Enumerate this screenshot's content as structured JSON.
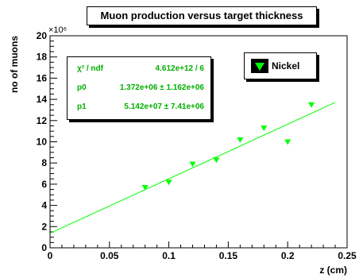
{
  "chart_data": {
    "type": "scatter",
    "title": "Muon production versus target thickness",
    "xlabel": "z (cm)",
    "ylabel": "no of muons",
    "y_multiplier": "×10⁶",
    "xlim": [
      0,
      0.25
    ],
    "ylim": [
      0,
      20
    ],
    "x_ticks": [
      "0",
      "0.05",
      "0.1",
      "0.15",
      "0.2",
      "0.25"
    ],
    "y_ticks": [
      "0",
      "2",
      "4",
      "6",
      "8",
      "10",
      "12",
      "14",
      "16",
      "18",
      "20"
    ],
    "series": [
      {
        "name": "Nickel",
        "marker": "triangle-down",
        "color": "#00ff00",
        "x": [
          0.08,
          0.1,
          0.12,
          0.14,
          0.16,
          0.18,
          0.2,
          0.22
        ],
        "y": [
          5.7,
          6.2,
          7.9,
          8.3,
          10.2,
          11.3,
          10.0,
          13.5
        ]
      }
    ],
    "fit": {
      "color": "#00ff00",
      "x_range": [
        0,
        0.24
      ],
      "p0": 1.372,
      "p1": 51.42
    },
    "grid": false
  },
  "stats": {
    "chi2_label": "χ² / ndf",
    "chi2_value": "4.612e+12 / 6",
    "p0_label": "p0",
    "p0_value": "1.372e+06 ± 1.162e+06",
    "p1_label": "p1",
    "p1_value": "5.142e+07 ± 7.41e+06"
  },
  "legend": {
    "label": "Nickel"
  },
  "colors": {
    "marker": "#00ff00",
    "stats_text": "#00b000",
    "axis": "#000000"
  }
}
